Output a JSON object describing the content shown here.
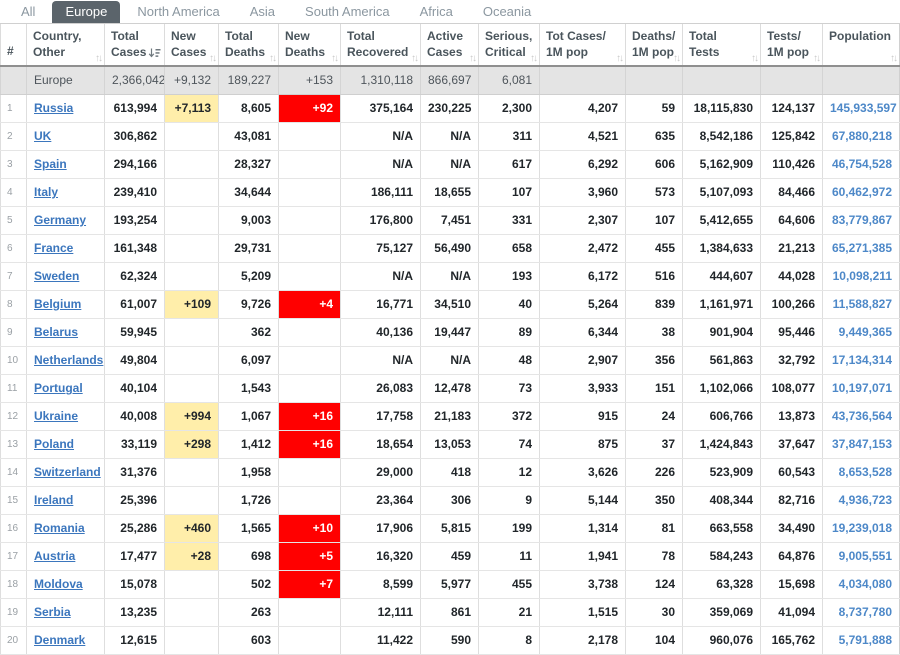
{
  "tabs": [
    {
      "label": "All",
      "active": false
    },
    {
      "label": "Europe",
      "active": true
    },
    {
      "label": "North America",
      "active": false
    },
    {
      "label": "Asia",
      "active": false
    },
    {
      "label": "South America",
      "active": false
    },
    {
      "label": "Africa",
      "active": false
    },
    {
      "label": "Oceania",
      "active": false
    }
  ],
  "columns": [
    {
      "id": "idx",
      "label_lines": [
        "#"
      ],
      "sortable": false
    },
    {
      "id": "country",
      "label_lines": [
        "Country,",
        "Other"
      ],
      "sortable": true
    },
    {
      "id": "total_cases",
      "label_lines": [
        "Total",
        "Cases"
      ],
      "sortable": true,
      "sort": "desc"
    },
    {
      "id": "new_cases",
      "label_lines": [
        "New",
        "Cases"
      ],
      "sortable": true
    },
    {
      "id": "total_deaths",
      "label_lines": [
        "Total",
        "Deaths"
      ],
      "sortable": true
    },
    {
      "id": "new_deaths",
      "label_lines": [
        "New",
        "Deaths"
      ],
      "sortable": true
    },
    {
      "id": "total_recovered",
      "label_lines": [
        "Total",
        "Recovered"
      ],
      "sortable": true
    },
    {
      "id": "active_cases",
      "label_lines": [
        "Active",
        "Cases"
      ],
      "sortable": true
    },
    {
      "id": "serious",
      "label_lines": [
        "Serious,",
        "Critical"
      ],
      "sortable": true
    },
    {
      "id": "cases_1m",
      "label_lines": [
        "Tot Cases/",
        "1M pop"
      ],
      "sortable": true
    },
    {
      "id": "deaths_1m",
      "label_lines": [
        "Deaths/",
        "1M pop"
      ],
      "sortable": true
    },
    {
      "id": "total_tests",
      "label_lines": [
        "Total",
        "Tests"
      ],
      "sortable": true
    },
    {
      "id": "tests_1m",
      "label_lines": [
        "Tests/",
        "1M pop"
      ],
      "sortable": true
    },
    {
      "id": "population",
      "label_lines": [
        "Population"
      ],
      "sortable": true
    }
  ],
  "summary": {
    "idx": "",
    "country": "Europe",
    "total_cases": "2,366,042",
    "new_cases": "+9,132",
    "total_deaths": "189,227",
    "new_deaths": "+153",
    "total_recovered": "1,310,118",
    "active_cases": "866,697",
    "serious": "6,081",
    "cases_1m": "",
    "deaths_1m": "",
    "total_tests": "",
    "tests_1m": "",
    "population": ""
  },
  "rows": [
    {
      "idx": "1",
      "country": "Russia",
      "total_cases": "613,994",
      "new_cases": "+7,113",
      "total_deaths": "8,605",
      "new_deaths": "+92",
      "total_recovered": "375,164",
      "active_cases": "230,225",
      "serious": "2,300",
      "cases_1m": "4,207",
      "deaths_1m": "59",
      "total_tests": "18,115,830",
      "tests_1m": "124,137",
      "population": "145,933,597"
    },
    {
      "idx": "2",
      "country": "UK",
      "total_cases": "306,862",
      "new_cases": "",
      "total_deaths": "43,081",
      "new_deaths": "",
      "total_recovered": "N/A",
      "active_cases": "N/A",
      "serious": "311",
      "cases_1m": "4,521",
      "deaths_1m": "635",
      "total_tests": "8,542,186",
      "tests_1m": "125,842",
      "population": "67,880,218"
    },
    {
      "idx": "3",
      "country": "Spain",
      "total_cases": "294,166",
      "new_cases": "",
      "total_deaths": "28,327",
      "new_deaths": "",
      "total_recovered": "N/A",
      "active_cases": "N/A",
      "serious": "617",
      "cases_1m": "6,292",
      "deaths_1m": "606",
      "total_tests": "5,162,909",
      "tests_1m": "110,426",
      "population": "46,754,528"
    },
    {
      "idx": "4",
      "country": "Italy",
      "total_cases": "239,410",
      "new_cases": "",
      "total_deaths": "34,644",
      "new_deaths": "",
      "total_recovered": "186,111",
      "active_cases": "18,655",
      "serious": "107",
      "cases_1m": "3,960",
      "deaths_1m": "573",
      "total_tests": "5,107,093",
      "tests_1m": "84,466",
      "population": "60,462,972"
    },
    {
      "idx": "5",
      "country": "Germany",
      "total_cases": "193,254",
      "new_cases": "",
      "total_deaths": "9,003",
      "new_deaths": "",
      "total_recovered": "176,800",
      "active_cases": "7,451",
      "serious": "331",
      "cases_1m": "2,307",
      "deaths_1m": "107",
      "total_tests": "5,412,655",
      "tests_1m": "64,606",
      "population": "83,779,867"
    },
    {
      "idx": "6",
      "country": "France",
      "total_cases": "161,348",
      "new_cases": "",
      "total_deaths": "29,731",
      "new_deaths": "",
      "total_recovered": "75,127",
      "active_cases": "56,490",
      "serious": "658",
      "cases_1m": "2,472",
      "deaths_1m": "455",
      "total_tests": "1,384,633",
      "tests_1m": "21,213",
      "population": "65,271,385"
    },
    {
      "idx": "7",
      "country": "Sweden",
      "total_cases": "62,324",
      "new_cases": "",
      "total_deaths": "5,209",
      "new_deaths": "",
      "total_recovered": "N/A",
      "active_cases": "N/A",
      "serious": "193",
      "cases_1m": "6,172",
      "deaths_1m": "516",
      "total_tests": "444,607",
      "tests_1m": "44,028",
      "population": "10,098,211"
    },
    {
      "idx": "8",
      "country": "Belgium",
      "total_cases": "61,007",
      "new_cases": "+109",
      "total_deaths": "9,726",
      "new_deaths": "+4",
      "total_recovered": "16,771",
      "active_cases": "34,510",
      "serious": "40",
      "cases_1m": "5,264",
      "deaths_1m": "839",
      "total_tests": "1,161,971",
      "tests_1m": "100,266",
      "population": "11,588,827"
    },
    {
      "idx": "9",
      "country": "Belarus",
      "total_cases": "59,945",
      "new_cases": "",
      "total_deaths": "362",
      "new_deaths": "",
      "total_recovered": "40,136",
      "active_cases": "19,447",
      "serious": "89",
      "cases_1m": "6,344",
      "deaths_1m": "38",
      "total_tests": "901,904",
      "tests_1m": "95,446",
      "population": "9,449,365"
    },
    {
      "idx": "10",
      "country": "Netherlands",
      "total_cases": "49,804",
      "new_cases": "",
      "total_deaths": "6,097",
      "new_deaths": "",
      "total_recovered": "N/A",
      "active_cases": "N/A",
      "serious": "48",
      "cases_1m": "2,907",
      "deaths_1m": "356",
      "total_tests": "561,863",
      "tests_1m": "32,792",
      "population": "17,134,314"
    },
    {
      "idx": "11",
      "country": "Portugal",
      "total_cases": "40,104",
      "new_cases": "",
      "total_deaths": "1,543",
      "new_deaths": "",
      "total_recovered": "26,083",
      "active_cases": "12,478",
      "serious": "73",
      "cases_1m": "3,933",
      "deaths_1m": "151",
      "total_tests": "1,102,066",
      "tests_1m": "108,077",
      "population": "10,197,071"
    },
    {
      "idx": "12",
      "country": "Ukraine",
      "total_cases": "40,008",
      "new_cases": "+994",
      "total_deaths": "1,067",
      "new_deaths": "+16",
      "total_recovered": "17,758",
      "active_cases": "21,183",
      "serious": "372",
      "cases_1m": "915",
      "deaths_1m": "24",
      "total_tests": "606,766",
      "tests_1m": "13,873",
      "population": "43,736,564"
    },
    {
      "idx": "13",
      "country": "Poland",
      "total_cases": "33,119",
      "new_cases": "+298",
      "total_deaths": "1,412",
      "new_deaths": "+16",
      "total_recovered": "18,654",
      "active_cases": "13,053",
      "serious": "74",
      "cases_1m": "875",
      "deaths_1m": "37",
      "total_tests": "1,424,843",
      "tests_1m": "37,647",
      "population": "37,847,153"
    },
    {
      "idx": "14",
      "country": "Switzerland",
      "total_cases": "31,376",
      "new_cases": "",
      "total_deaths": "1,958",
      "new_deaths": "",
      "total_recovered": "29,000",
      "active_cases": "418",
      "serious": "12",
      "cases_1m": "3,626",
      "deaths_1m": "226",
      "total_tests": "523,909",
      "tests_1m": "60,543",
      "population": "8,653,528"
    },
    {
      "idx": "15",
      "country": "Ireland",
      "total_cases": "25,396",
      "new_cases": "",
      "total_deaths": "1,726",
      "new_deaths": "",
      "total_recovered": "23,364",
      "active_cases": "306",
      "serious": "9",
      "cases_1m": "5,144",
      "deaths_1m": "350",
      "total_tests": "408,344",
      "tests_1m": "82,716",
      "population": "4,936,723"
    },
    {
      "idx": "16",
      "country": "Romania",
      "total_cases": "25,286",
      "new_cases": "+460",
      "total_deaths": "1,565",
      "new_deaths": "+10",
      "total_recovered": "17,906",
      "active_cases": "5,815",
      "serious": "199",
      "cases_1m": "1,314",
      "deaths_1m": "81",
      "total_tests": "663,558",
      "tests_1m": "34,490",
      "population": "19,239,018"
    },
    {
      "idx": "17",
      "country": "Austria",
      "total_cases": "17,477",
      "new_cases": "+28",
      "total_deaths": "698",
      "new_deaths": "+5",
      "total_recovered": "16,320",
      "active_cases": "459",
      "serious": "11",
      "cases_1m": "1,941",
      "deaths_1m": "78",
      "total_tests": "584,243",
      "tests_1m": "64,876",
      "population": "9,005,551"
    },
    {
      "idx": "18",
      "country": "Moldova",
      "total_cases": "15,078",
      "new_cases": "",
      "total_deaths": "502",
      "new_deaths": "+7",
      "total_recovered": "8,599",
      "active_cases": "5,977",
      "serious": "455",
      "cases_1m": "3,738",
      "deaths_1m": "124",
      "total_tests": "63,328",
      "tests_1m": "15,698",
      "population": "4,034,080"
    },
    {
      "idx": "19",
      "country": "Serbia",
      "total_cases": "13,235",
      "new_cases": "",
      "total_deaths": "263",
      "new_deaths": "",
      "total_recovered": "12,111",
      "active_cases": "861",
      "serious": "21",
      "cases_1m": "1,515",
      "deaths_1m": "30",
      "total_tests": "359,069",
      "tests_1m": "41,094",
      "population": "8,737,780"
    },
    {
      "idx": "20",
      "country": "Denmark",
      "total_cases": "12,615",
      "new_cases": "",
      "total_deaths": "603",
      "new_deaths": "",
      "total_recovered": "11,422",
      "active_cases": "590",
      "serious": "8",
      "cases_1m": "2,178",
      "deaths_1m": "104",
      "total_tests": "960,076",
      "tests_1m": "165,762",
      "population": "5,791,888"
    }
  ],
  "colors": {
    "new_cases_highlight": "#FFEEAA",
    "new_deaths_highlight": "#FF0000",
    "active_tab_bg": "#5b646b",
    "link_blue": "#3b76bd",
    "population_blue": "#4d88c8"
  },
  "icons": {
    "sort_unsorted": "sort-arrows-icon",
    "sort_descending": "sort-desc-icon"
  }
}
